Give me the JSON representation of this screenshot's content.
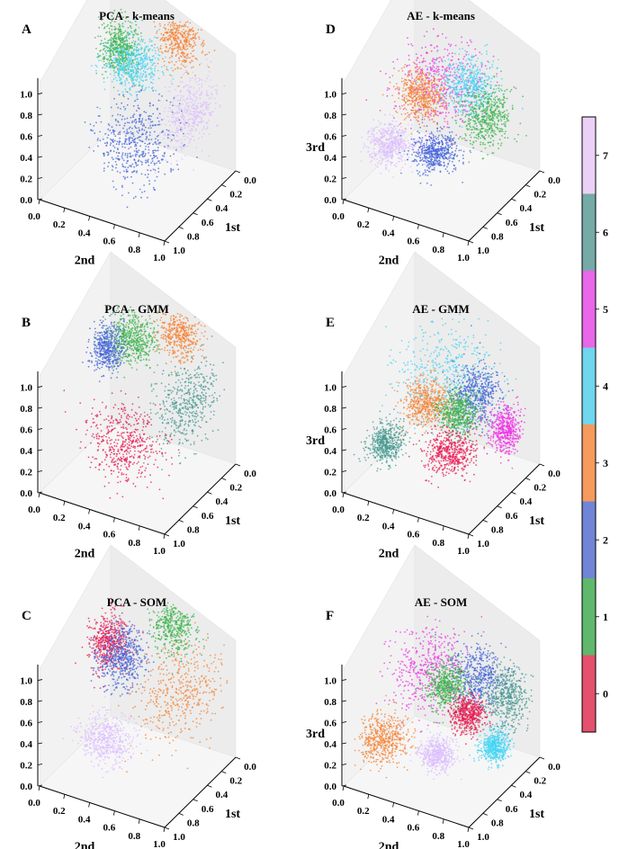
{
  "chart_data": [
    {
      "type": "scatter",
      "panel": "A",
      "title": "PCA - k-means",
      "xlabel": "1st",
      "ylabel": "2nd",
      "zlabel": "",
      "xlim": [
        0,
        1
      ],
      "ylim": [
        0,
        1
      ],
      "zlim": [
        0,
        1
      ],
      "x_ticks": [
        "0.0",
        "0.2",
        "0.4",
        "0.6",
        "0.8",
        "1.0"
      ],
      "y_ticks": [
        "0.0",
        "0.2",
        "0.4",
        "0.6",
        "0.8",
        "1.0"
      ],
      "z_ticks": [
        "0.0",
        "0.2",
        "0.4",
        "0.6",
        "0.8",
        "1.0"
      ],
      "clusters": [
        {
          "label": 1,
          "center": [
            0.22,
            0.2,
            0.78
          ],
          "spread": [
            0.06,
            0.07,
            0.1
          ]
        },
        {
          "label": 4,
          "center": [
            0.3,
            0.35,
            0.74
          ],
          "spread": [
            0.1,
            0.1,
            0.08
          ]
        },
        {
          "label": 3,
          "center": [
            0.08,
            0.6,
            0.9
          ],
          "spread": [
            0.05,
            0.08,
            0.1
          ]
        },
        {
          "label": 7,
          "center": [
            0.45,
            0.9,
            0.62
          ],
          "spread": [
            0.14,
            0.08,
            0.12
          ]
        },
        {
          "label": 2,
          "center": [
            0.7,
            0.6,
            0.45
          ],
          "spread": [
            0.14,
            0.14,
            0.14
          ]
        }
      ]
    },
    {
      "type": "scatter",
      "panel": "B",
      "title": "PCA - GMM",
      "xlabel": "1st",
      "ylabel": "2nd",
      "zlabel": "",
      "xlim": [
        0,
        1
      ],
      "ylim": [
        0,
        1
      ],
      "zlim": [
        0,
        1
      ],
      "x_ticks": [
        "0.0",
        "0.2",
        "0.4",
        "0.6",
        "0.8",
        "1.0"
      ],
      "y_ticks": [
        "0.0",
        "0.2",
        "0.4",
        "0.6",
        "0.8",
        "1.0"
      ],
      "z_ticks": [
        "0.0",
        "0.2",
        "0.4",
        "0.6",
        "0.8",
        "1.0"
      ],
      "clusters": [
        {
          "label": 2,
          "center": [
            0.25,
            0.12,
            0.72
          ],
          "spread": [
            0.07,
            0.06,
            0.08
          ]
        },
        {
          "label": 1,
          "center": [
            0.2,
            0.3,
            0.82
          ],
          "spread": [
            0.08,
            0.08,
            0.08
          ]
        },
        {
          "label": 3,
          "center": [
            0.08,
            0.6,
            0.9
          ],
          "spread": [
            0.05,
            0.08,
            0.1
          ]
        },
        {
          "label": 6,
          "center": [
            0.4,
            0.85,
            0.62
          ],
          "spread": [
            0.16,
            0.1,
            0.14
          ]
        },
        {
          "label": 0,
          "center": [
            0.78,
            0.55,
            0.42
          ],
          "spread": [
            0.12,
            0.14,
            0.12
          ]
        }
      ]
    },
    {
      "type": "scatter",
      "panel": "C",
      "title": "PCA - SOM",
      "xlabel": "1st",
      "ylabel": "2nd",
      "zlabel": "",
      "xlim": [
        0,
        1
      ],
      "ylim": [
        0,
        1
      ],
      "zlim": [
        0,
        1
      ],
      "x_ticks": [
        "0.0",
        "0.2",
        "0.4",
        "0.6",
        "0.8",
        "1.0"
      ],
      "y_ticks": [
        "0.0",
        "0.2",
        "0.4",
        "0.6",
        "0.8",
        "1.0"
      ],
      "z_ticks": [
        "0.0",
        "0.2",
        "0.4",
        "0.6",
        "0.8",
        "1.0"
      ],
      "clusters": [
        {
          "label": 0,
          "center": [
            0.25,
            0.12,
            0.72
          ],
          "spread": [
            0.08,
            0.07,
            0.1
          ]
        },
        {
          "label": 2,
          "center": [
            0.35,
            0.28,
            0.7
          ],
          "spread": [
            0.1,
            0.08,
            0.1
          ]
        },
        {
          "label": 1,
          "center": [
            0.08,
            0.55,
            0.88
          ],
          "spread": [
            0.06,
            0.08,
            0.1
          ]
        },
        {
          "label": 3,
          "center": [
            0.4,
            0.8,
            0.62
          ],
          "spread": [
            0.2,
            0.14,
            0.16
          ]
        },
        {
          "label": 7,
          "center": [
            0.85,
            0.45,
            0.4
          ],
          "spread": [
            0.08,
            0.1,
            0.08
          ]
        }
      ]
    },
    {
      "type": "scatter",
      "panel": "D",
      "title": "AE - k-means",
      "xlabel": "1st",
      "ylabel": "2nd",
      "zlabel": "3rd",
      "xlim": [
        0,
        1
      ],
      "ylim": [
        0,
        1
      ],
      "zlim": [
        0,
        1
      ],
      "x_ticks": [
        "0.0",
        "0.2",
        "0.4",
        "0.6",
        "0.8",
        "1.0"
      ],
      "y_ticks": [
        "0.0",
        "0.2",
        "0.4",
        "0.6",
        "0.8",
        "1.0"
      ],
      "z_ticks": [
        "0.0",
        "0.2",
        "0.4",
        "0.6",
        "0.8",
        "1.0"
      ],
      "clusters": [
        {
          "label": 5,
          "center": [
            0.5,
            0.5,
            0.78
          ],
          "spread": [
            0.16,
            0.16,
            0.16
          ]
        },
        {
          "label": 3,
          "center": [
            0.4,
            0.28,
            0.55
          ],
          "spread": [
            0.08,
            0.08,
            0.08
          ]
        },
        {
          "label": 4,
          "center": [
            0.2,
            0.55,
            0.6
          ],
          "spread": [
            0.08,
            0.1,
            0.1
          ]
        },
        {
          "label": 1,
          "center": [
            0.25,
            0.72,
            0.45
          ],
          "spread": [
            0.1,
            0.08,
            0.1
          ]
        },
        {
          "label": 7,
          "center": [
            0.7,
            0.2,
            0.32
          ],
          "spread": [
            0.08,
            0.08,
            0.06
          ]
        },
        {
          "label": 2,
          "center": [
            0.6,
            0.5,
            0.3
          ],
          "spread": [
            0.08,
            0.08,
            0.06
          ]
        }
      ]
    },
    {
      "type": "scatter",
      "panel": "E",
      "title": "AE - GMM",
      "xlabel": "1st",
      "ylabel": "2nd",
      "zlabel": "3rd",
      "xlim": [
        0,
        1
      ],
      "ylim": [
        0,
        1
      ],
      "zlim": [
        0,
        1
      ],
      "x_ticks": [
        "0.0",
        "0.2",
        "0.4",
        "0.6",
        "0.8",
        "1.0"
      ],
      "y_ticks": [
        "0.0",
        "0.2",
        "0.4",
        "0.6",
        "0.8",
        "1.0"
      ],
      "z_ticks": [
        "0.0",
        "0.2",
        "0.4",
        "0.6",
        "0.8",
        "1.0"
      ],
      "clusters": [
        {
          "label": 4,
          "center": [
            0.45,
            0.5,
            0.8
          ],
          "spread": [
            0.18,
            0.18,
            0.18
          ]
        },
        {
          "label": 2,
          "center": [
            0.28,
            0.65,
            0.55
          ],
          "spread": [
            0.1,
            0.08,
            0.1
          ]
        },
        {
          "label": 3,
          "center": [
            0.45,
            0.35,
            0.48
          ],
          "spread": [
            0.08,
            0.08,
            0.08
          ]
        },
        {
          "label": 1,
          "center": [
            0.35,
            0.55,
            0.42
          ],
          "spread": [
            0.07,
            0.07,
            0.07
          ]
        },
        {
          "label": 6,
          "center": [
            0.75,
            0.2,
            0.3
          ],
          "spread": [
            0.08,
            0.06,
            0.06
          ]
        },
        {
          "label": 0,
          "center": [
            0.55,
            0.6,
            0.25
          ],
          "spread": [
            0.1,
            0.08,
            0.06
          ]
        },
        {
          "label": 5,
          "center": [
            0.3,
            0.9,
            0.38
          ],
          "spread": [
            0.06,
            0.06,
            0.08
          ]
        }
      ]
    },
    {
      "type": "scatter",
      "panel": "F",
      "title": "AE - SOM",
      "xlabel": "1st",
      "ylabel": "2nd",
      "zlabel": "3rd",
      "xlim": [
        0,
        1
      ],
      "ylim": [
        0,
        1
      ],
      "zlim": [
        0,
        1
      ],
      "x_ticks": [
        "0.0",
        "0.2",
        "0.4",
        "0.6",
        "0.8",
        "1.0"
      ],
      "y_ticks": [
        "0.0",
        "0.2",
        "0.4",
        "0.6",
        "0.8",
        "1.0"
      ],
      "z_ticks": [
        "0.0",
        "0.2",
        "0.4",
        "0.6",
        "0.8",
        "1.0"
      ],
      "clusters": [
        {
          "label": 5,
          "center": [
            0.55,
            0.42,
            0.8
          ],
          "spread": [
            0.16,
            0.12,
            0.16
          ]
        },
        {
          "label": 2,
          "center": [
            0.25,
            0.65,
            0.62
          ],
          "spread": [
            0.1,
            0.1,
            0.1
          ]
        },
        {
          "label": 1,
          "center": [
            0.35,
            0.45,
            0.55
          ],
          "spread": [
            0.07,
            0.07,
            0.08
          ]
        },
        {
          "label": 6,
          "center": [
            0.2,
            0.85,
            0.5
          ],
          "spread": [
            0.08,
            0.08,
            0.1
          ]
        },
        {
          "label": 0,
          "center": [
            0.4,
            0.65,
            0.42
          ],
          "spread": [
            0.06,
            0.06,
            0.06
          ]
        },
        {
          "label": 3,
          "center": [
            0.8,
            0.2,
            0.3
          ],
          "spread": [
            0.1,
            0.08,
            0.08
          ]
        },
        {
          "label": 7,
          "center": [
            0.65,
            0.55,
            0.22
          ],
          "spread": [
            0.06,
            0.06,
            0.05
          ]
        },
        {
          "label": 4,
          "center": [
            0.45,
            0.9,
            0.28
          ],
          "spread": [
            0.06,
            0.05,
            0.05
          ]
        }
      ]
    }
  ],
  "colorbar": {
    "labels": [
      "0",
      "1",
      "2",
      "3",
      "4",
      "5",
      "6",
      "7"
    ],
    "colors": [
      "#e4506e",
      "#5fb86c",
      "#7085d6",
      "#f39a5c",
      "#6fd6ee",
      "#e866e8",
      "#76aaa6",
      "#ecd1f6"
    ]
  },
  "cluster_colors": [
    "#e8184f",
    "#3cb44b",
    "#4363d8",
    "#f58231",
    "#42d4f4",
    "#f032e6",
    "#469990",
    "#dcbeff"
  ]
}
